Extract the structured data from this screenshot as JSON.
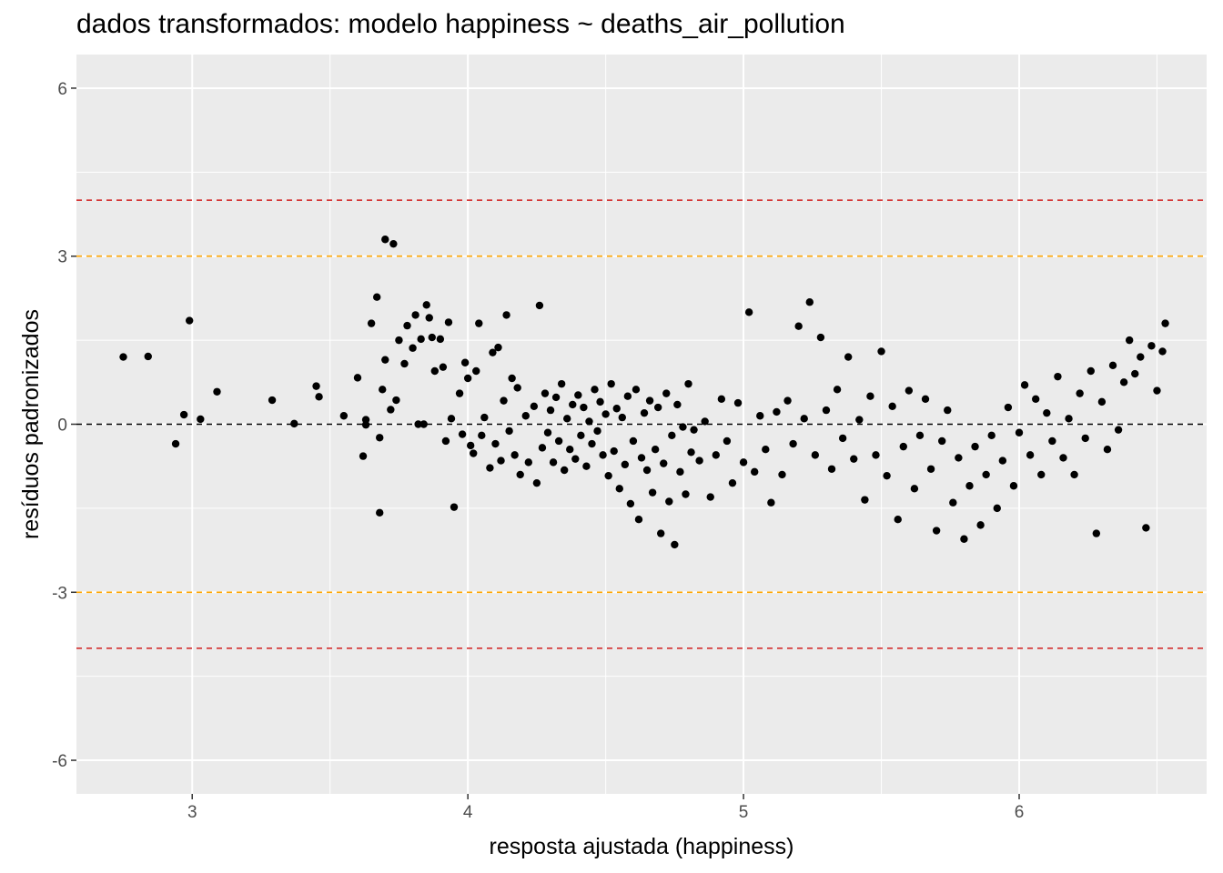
{
  "chart_data": {
    "type": "scatter",
    "title": "dados transformados: modelo happiness ~ deaths_air_pollution",
    "xlabel": "resposta ajustada (happiness)",
    "ylabel": "resíduos padronizados",
    "xlim": [
      2.58,
      6.68
    ],
    "ylim": [
      -6.6,
      6.6
    ],
    "x_ticks": [
      3,
      4,
      5,
      6
    ],
    "y_ticks": [
      -6,
      -3,
      0,
      3,
      6
    ],
    "x_tick_labels": [
      "3",
      "4",
      "5",
      "6"
    ],
    "y_tick_labels": [
      "-6",
      "-3",
      "0",
      "3",
      "6"
    ],
    "grid": true,
    "background": "#ebebeb",
    "point_color": "#000000",
    "reference_lines": [
      {
        "y": 4,
        "color": "#d21f1f",
        "style": "dashed"
      },
      {
        "y": 3,
        "color": "#ffa500",
        "style": "dashed"
      },
      {
        "y": 0,
        "color": "#000000",
        "style": "dashed"
      },
      {
        "y": -3,
        "color": "#ffa500",
        "style": "dashed"
      },
      {
        "y": -4,
        "color": "#d21f1f",
        "style": "dashed"
      }
    ],
    "points": [
      [
        2.75,
        1.2
      ],
      [
        2.84,
        1.21
      ],
      [
        2.94,
        -0.35
      ],
      [
        2.97,
        0.17
      ],
      [
        2.99,
        1.85
      ],
      [
        3.03,
        0.09
      ],
      [
        3.09,
        0.58
      ],
      [
        3.29,
        0.43
      ],
      [
        3.37,
        0.01
      ],
      [
        3.45,
        0.68
      ],
      [
        3.46,
        0.49
      ],
      [
        3.55,
        0.15
      ],
      [
        3.6,
        0.83
      ],
      [
        3.62,
        -0.57
      ],
      [
        3.63,
        0.08
      ],
      [
        3.63,
        -0.01
      ],
      [
        3.65,
        1.8
      ],
      [
        3.67,
        2.27
      ],
      [
        3.68,
        -1.58
      ],
      [
        3.68,
        -0.24
      ],
      [
        3.69,
        0.62
      ],
      [
        3.7,
        1.15
      ],
      [
        3.7,
        3.3
      ],
      [
        3.72,
        0.26
      ],
      [
        3.73,
        3.22
      ],
      [
        3.74,
        0.43
      ],
      [
        3.75,
        1.5
      ],
      [
        3.77,
        1.08
      ],
      [
        3.78,
        1.76
      ],
      [
        3.8,
        1.36
      ],
      [
        3.81,
        1.95
      ],
      [
        3.82,
        0.0
      ],
      [
        3.83,
        1.52
      ],
      [
        3.84,
        0.0
      ],
      [
        3.85,
        2.13
      ],
      [
        3.86,
        1.9
      ],
      [
        3.87,
        1.55
      ],
      [
        3.88,
        0.95
      ],
      [
        3.9,
        1.52
      ],
      [
        3.91,
        1.02
      ],
      [
        3.92,
        -0.3
      ],
      [
        3.93,
        1.82
      ],
      [
        3.94,
        0.1
      ],
      [
        3.95,
        -1.48
      ],
      [
        3.97,
        0.55
      ],
      [
        3.98,
        -0.18
      ],
      [
        3.99,
        1.1
      ],
      [
        4.0,
        0.82
      ],
      [
        4.01,
        -0.38
      ],
      [
        4.02,
        -0.52
      ],
      [
        4.03,
        0.95
      ],
      [
        4.04,
        1.8
      ],
      [
        4.05,
        -0.2
      ],
      [
        4.06,
        0.12
      ],
      [
        4.08,
        -0.78
      ],
      [
        4.09,
        1.28
      ],
      [
        4.1,
        -0.35
      ],
      [
        4.11,
        1.37
      ],
      [
        4.12,
        -0.65
      ],
      [
        4.13,
        0.42
      ],
      [
        4.14,
        1.95
      ],
      [
        4.15,
        -0.12
      ],
      [
        4.16,
        0.82
      ],
      [
        4.17,
        -0.55
      ],
      [
        4.18,
        0.65
      ],
      [
        4.19,
        -0.9
      ],
      [
        4.21,
        0.15
      ],
      [
        4.22,
        -0.68
      ],
      [
        4.24,
        0.32
      ],
      [
        4.25,
        -1.05
      ],
      [
        4.26,
        2.12
      ],
      [
        4.27,
        -0.42
      ],
      [
        4.28,
        0.55
      ],
      [
        4.29,
        -0.15
      ],
      [
        4.3,
        0.25
      ],
      [
        4.31,
        -0.68
      ],
      [
        4.32,
        0.48
      ],
      [
        4.33,
        -0.3
      ],
      [
        4.34,
        0.72
      ],
      [
        4.35,
        -0.82
      ],
      [
        4.36,
        0.1
      ],
      [
        4.37,
        -0.45
      ],
      [
        4.38,
        0.35
      ],
      [
        4.39,
        -0.62
      ],
      [
        4.4,
        0.52
      ],
      [
        4.41,
        -0.2
      ],
      [
        4.42,
        0.3
      ],
      [
        4.43,
        -0.75
      ],
      [
        4.44,
        0.05
      ],
      [
        4.45,
        -0.35
      ],
      [
        4.46,
        0.62
      ],
      [
        4.47,
        -0.12
      ],
      [
        4.48,
        0.4
      ],
      [
        4.49,
        -0.55
      ],
      [
        4.5,
        0.18
      ],
      [
        4.51,
        -0.92
      ],
      [
        4.52,
        0.72
      ],
      [
        4.53,
        -0.48
      ],
      [
        4.54,
        0.28
      ],
      [
        4.55,
        -1.15
      ],
      [
        4.56,
        0.12
      ],
      [
        4.57,
        -0.72
      ],
      [
        4.58,
        0.5
      ],
      [
        4.59,
        -1.42
      ],
      [
        4.6,
        -0.3
      ],
      [
        4.61,
        0.62
      ],
      [
        4.62,
        -1.7
      ],
      [
        4.63,
        -0.6
      ],
      [
        4.64,
        0.2
      ],
      [
        4.65,
        -0.82
      ],
      [
        4.66,
        0.42
      ],
      [
        4.67,
        -1.22
      ],
      [
        4.68,
        -0.45
      ],
      [
        4.69,
        0.3
      ],
      [
        4.7,
        -1.95
      ],
      [
        4.71,
        -0.7
      ],
      [
        4.72,
        0.55
      ],
      [
        4.73,
        -1.38
      ],
      [
        4.74,
        -0.2
      ],
      [
        4.75,
        -2.15
      ],
      [
        4.76,
        0.35
      ],
      [
        4.77,
        -0.85
      ],
      [
        4.78,
        -0.05
      ],
      [
        4.79,
        -1.25
      ],
      [
        4.8,
        0.72
      ],
      [
        4.81,
        -0.5
      ],
      [
        4.82,
        -0.1
      ],
      [
        4.84,
        -0.65
      ],
      [
        4.86,
        0.05
      ],
      [
        4.88,
        -1.3
      ],
      [
        4.9,
        -0.55
      ],
      [
        4.92,
        0.45
      ],
      [
        4.94,
        -0.3
      ],
      [
        4.96,
        -1.05
      ],
      [
        4.98,
        0.38
      ],
      [
        5.0,
        -0.68
      ],
      [
        5.02,
        2.0
      ],
      [
        5.04,
        -0.85
      ],
      [
        5.06,
        0.15
      ],
      [
        5.08,
        -0.45
      ],
      [
        5.1,
        -1.4
      ],
      [
        5.12,
        0.22
      ],
      [
        5.14,
        -0.9
      ],
      [
        5.16,
        0.42
      ],
      [
        5.18,
        -0.35
      ],
      [
        5.2,
        1.75
      ],
      [
        5.22,
        0.1
      ],
      [
        5.24,
        2.18
      ],
      [
        5.26,
        -0.55
      ],
      [
        5.28,
        1.55
      ],
      [
        5.3,
        0.25
      ],
      [
        5.32,
        -0.8
      ],
      [
        5.34,
        0.62
      ],
      [
        5.36,
        -0.25
      ],
      [
        5.38,
        1.2
      ],
      [
        5.4,
        -0.62
      ],
      [
        5.42,
        0.08
      ],
      [
        5.44,
        -1.35
      ],
      [
        5.46,
        0.5
      ],
      [
        5.48,
        -0.55
      ],
      [
        5.5,
        1.3
      ],
      [
        5.52,
        -0.92
      ],
      [
        5.54,
        0.32
      ],
      [
        5.56,
        -1.7
      ],
      [
        5.58,
        -0.4
      ],
      [
        5.6,
        0.6
      ],
      [
        5.62,
        -1.15
      ],
      [
        5.64,
        -0.2
      ],
      [
        5.66,
        0.45
      ],
      [
        5.68,
        -0.8
      ],
      [
        5.7,
        -1.9
      ],
      [
        5.72,
        -0.3
      ],
      [
        5.74,
        0.25
      ],
      [
        5.76,
        -1.4
      ],
      [
        5.78,
        -0.6
      ],
      [
        5.8,
        -2.05
      ],
      [
        5.82,
        -1.1
      ],
      [
        5.84,
        -0.4
      ],
      [
        5.86,
        -1.8
      ],
      [
        5.88,
        -0.9
      ],
      [
        5.9,
        -0.2
      ],
      [
        5.92,
        -1.5
      ],
      [
        5.94,
        -0.65
      ],
      [
        5.96,
        0.3
      ],
      [
        5.98,
        -1.1
      ],
      [
        6.0,
        -0.15
      ],
      [
        6.02,
        0.7
      ],
      [
        6.04,
        -0.55
      ],
      [
        6.06,
        0.45
      ],
      [
        6.08,
        -0.9
      ],
      [
        6.1,
        0.2
      ],
      [
        6.12,
        -0.3
      ],
      [
        6.14,
        0.85
      ],
      [
        6.16,
        -0.6
      ],
      [
        6.18,
        0.1
      ],
      [
        6.2,
        -0.9
      ],
      [
        6.22,
        0.55
      ],
      [
        6.24,
        -0.25
      ],
      [
        6.26,
        0.95
      ],
      [
        6.28,
        -1.95
      ],
      [
        6.3,
        0.4
      ],
      [
        6.32,
        -0.45
      ],
      [
        6.34,
        1.05
      ],
      [
        6.36,
        -0.1
      ],
      [
        6.38,
        0.75
      ],
      [
        6.4,
        1.5
      ],
      [
        6.42,
        0.9
      ],
      [
        6.44,
        1.2
      ],
      [
        6.46,
        -1.85
      ],
      [
        6.48,
        1.4
      ],
      [
        6.5,
        0.6
      ],
      [
        6.52,
        1.3
      ],
      [
        6.53,
        1.8
      ]
    ]
  }
}
